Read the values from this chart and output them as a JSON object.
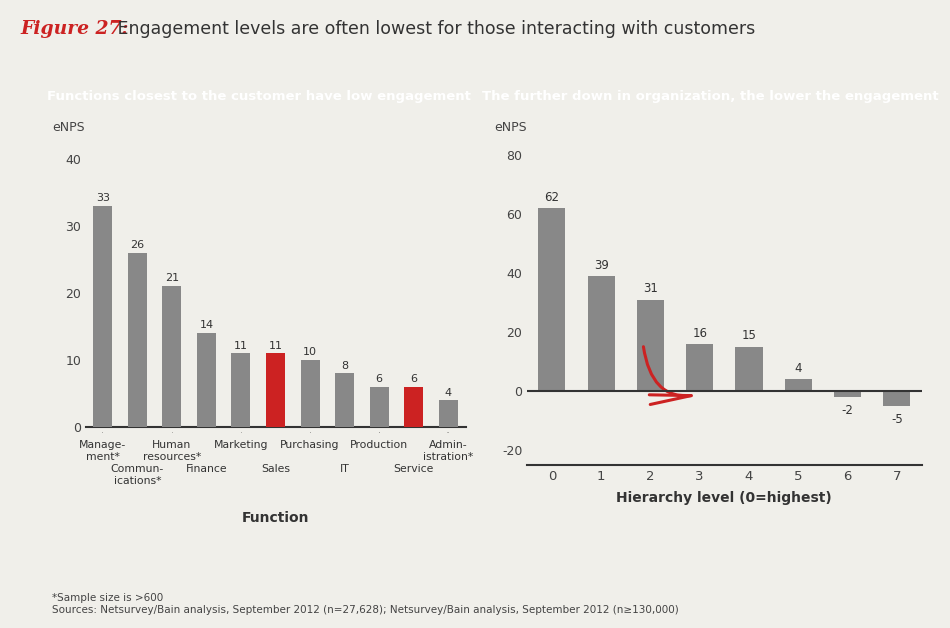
{
  "title_fig": "Figure 27:",
  "title_main": " Engagement levels are often lowest for those interacting with customers",
  "title_fig_color": "#cc2222",
  "title_main_color": "#333333",
  "left_panel_title": "Functions closest to the customer have low engagement",
  "right_panel_title": "The further down in organization, the lower the engagement",
  "panel_title_bg": "#1c1c1c",
  "panel_title_color": "#ffffff",
  "left_values": [
    33,
    26,
    21,
    14,
    11,
    11,
    10,
    8,
    6,
    6,
    4
  ],
  "left_colors": [
    "#888888",
    "#888888",
    "#888888",
    "#888888",
    "#888888",
    "#cc2222",
    "#888888",
    "#888888",
    "#888888",
    "#cc2222",
    "#888888"
  ],
  "left_top_labels": [
    "Manage-\nment*",
    "Human\nresources*",
    "Marketing",
    "Purchasing",
    "Production",
    "Admin-\nistration*"
  ],
  "left_top_positions": [
    0,
    2,
    4,
    6,
    8,
    10
  ],
  "left_bottom_labels": [
    "Commun-\nications*",
    "Finance",
    "Sales",
    "IT",
    "Service"
  ],
  "left_bottom_positions": [
    1,
    3,
    5,
    7,
    9
  ],
  "left_xlabel": "Function",
  "left_ylabel": "eNPS",
  "left_ylim": [
    0,
    44
  ],
  "left_yticks": [
    0,
    10,
    20,
    30,
    40
  ],
  "right_categories": [
    "0",
    "1",
    "2",
    "3",
    "4",
    "5",
    "6",
    "7"
  ],
  "right_values": [
    62,
    39,
    31,
    16,
    15,
    4,
    -2,
    -5
  ],
  "right_colors": [
    "#888888",
    "#888888",
    "#888888",
    "#888888",
    "#888888",
    "#888888",
    "#888888",
    "#888888"
  ],
  "right_xlabel": "Hierarchy level (0=highest)",
  "right_ylabel": "eNPS",
  "right_ylim": [
    -25,
    88
  ],
  "right_yticks": [
    -20,
    0,
    20,
    40,
    60,
    80
  ],
  "footnote1": "*Sample size is >600",
  "footnote2": "Sources: Netsurvey/Bain analysis, September 2012 (n=27,628); Netsurvey/Bain analysis, September 2012 (n≥130,000)",
  "bar_width": 0.55,
  "bg_color": "#f0efea"
}
